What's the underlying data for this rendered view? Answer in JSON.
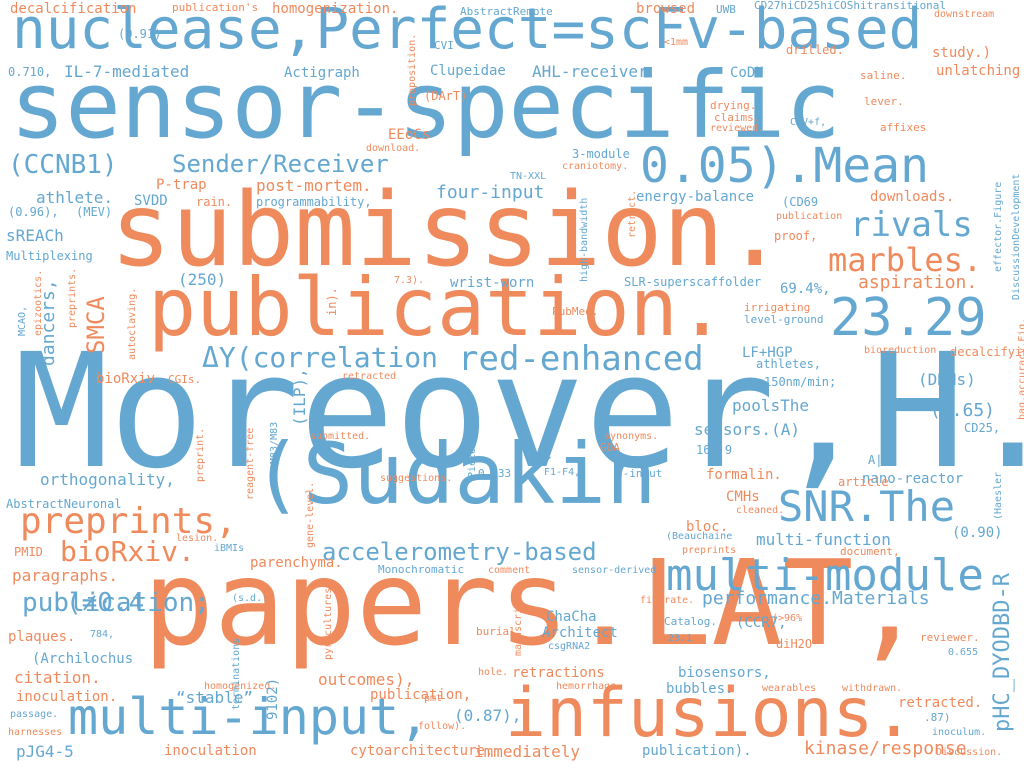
{
  "colors": {
    "blue": "#64a7d1",
    "orange": "#ef8a5d",
    "background": "#ffffff"
  },
  "words": [
    "Moreover,H.",
    "papers.LAT,",
    "sensor-specific",
    "submission.",
    "nuclease,Perfect=scFv-based",
    "(Sudakin",
    "publication.",
    "infusions.",
    "23.29",
    "0.05).Mean",
    "multi-input,",
    "multi-module",
    "SNR.The",
    "preprints,",
    "red-enhanced",
    "ΔY(correlation",
    "(CCNB1)",
    "Sender/Receiver",
    "rivals",
    "marbles.",
    "bioRxiv.",
    "accelerometry-based",
    "pHC_DYODBD-R",
    "decalcification",
    "publication's",
    "homogenization.",
    "AbstractRemote",
    "browsed",
    "UWB",
    "CD27hiCD25hiCOShitransitional",
    "downstream",
    "(0.91)",
    "CVI",
    "<1mm",
    "drilled.",
    "study.)",
    "0.710,",
    "IL-7-mediated",
    "Actigraph",
    "Clupeidae",
    "AHL-receiver",
    "CoDU",
    "saline.",
    "unlatching",
    "proposition.",
    "(DArT)",
    "drying.",
    "claims.",
    "reviewed.",
    "CMV+f,",
    "lever.",
    "affixes",
    "EEoCs",
    "download.",
    "3-module",
    "craniotomy.",
    "P-trap",
    "post-mortem.",
    "TN-XXL",
    "four-input",
    "energy-balance",
    "athlete.",
    "SVDD",
    "rain.",
    "programmability,",
    "(CD69",
    "downloads.",
    "(0.96),",
    "(MEV)",
    "sREACh",
    "high-bandwidth",
    "retract.",
    "publication",
    "proof,",
    "effector.Figure",
    "DiscussionDevelopment",
    "Multiplexing",
    "(250)",
    "wrist-worn",
    "SLR-superscaffolder",
    "69.4%,",
    "aspiration.",
    "MCAO,",
    "epizootics.",
    "dancers,",
    "preprints.",
    "SMCA",
    "autoclaving.",
    "7.3).",
    "in).",
    "PubMed.",
    "irrigating",
    "level-ground",
    "LF+HGP",
    "bioreduction",
    "decalcifying",
    "athletes,",
    "150nm/min;",
    "bioRxiv",
    "CGIs.",
    "retracted",
    "(DNNs)",
    "poolsThe",
    "(0.65)",
    "sensors.(A)",
    "CD25,",
    "167.9",
    "preprint.",
    "reagent-free",
    "M83/M83",
    "(ILP),",
    "submitted.",
    "Piezoelectric",
    "synonyms.",
    "GOA",
    "A|",
    "bag.accuracy.Fig.",
    "orthogonality,",
    "suggestions.",
    "0.733",
    "F1-F4,",
    "3-input",
    "formalin.",
    "nano-reactor",
    "(Haesler",
    "AbstractNeuronal",
    "gene-level.",
    "article",
    "CMHs",
    "cleaned.",
    "bloc.",
    "lesion.",
    "iBMIs",
    "parenchyma.",
    "(Beauchaine",
    "multi-function",
    "(0.90)",
    "PMID",
    "preprints",
    "document,",
    "paragraphs.",
    "Monochromatic",
    "comment",
    "sensor-derived",
    "(s.d.:",
    "pyrocultures",
    "filtrate.",
    "performance.Materials",
    "manuscript).",
    "terminations",
    "ChaCha",
    "(>96%",
    "plaques.",
    "784,",
    "Architect",
    "Catalog.",
    "(CCR7,",
    "reviewer.",
    "(Archilochus",
    "burial.",
    "csgRNA2",
    "23.1",
    "diH2O",
    "0.655",
    "citation.",
    "hole.",
    "retractions",
    "biosensors,",
    "inoculation.",
    "homogenized.",
    "outcomes),",
    "hemorrhage.",
    "bubbles.",
    "wearables",
    "withdrawn.",
    "“stable”",
    "publication,",
    "9102)",
    "pmt",
    "retracted.",
    "passage.",
    "(0.87),",
    ".87)",
    "harnesses",
    "follow).",
    "inoculum.",
    "pJG4-5",
    "inoculation",
    "cytoarchitecture.",
    "immediately",
    "publication).",
    "kinase/response",
    "Discussion.",
    "publication;",
    "(≠0.4",
    "0.4"
  ]
}
